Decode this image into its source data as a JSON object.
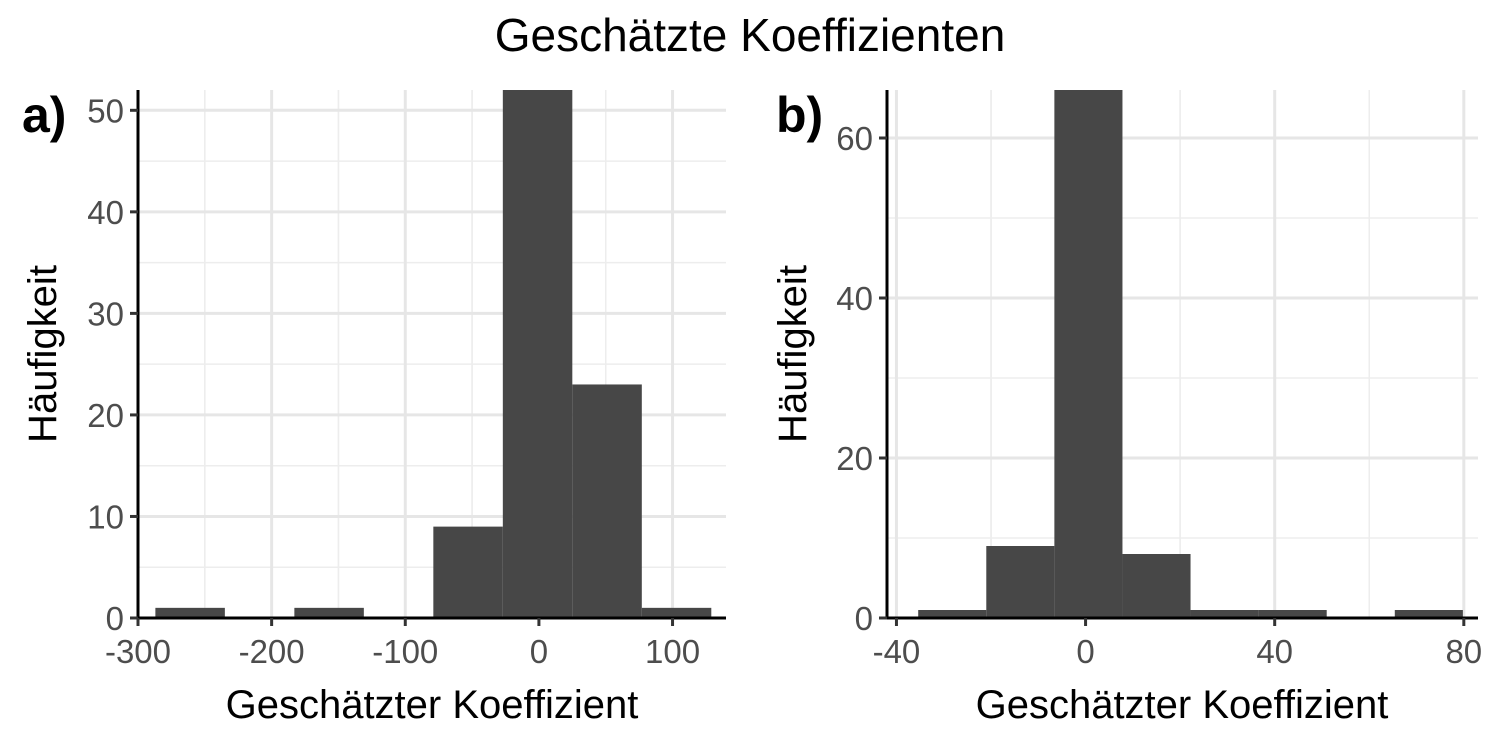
{
  "title": "Geschätzte Koeffizienten",
  "chart_data": [
    {
      "type": "bar",
      "panel": "a)",
      "xlabel": "Geschätzter Koeffizient",
      "ylabel": "Häufigkeit",
      "xlim": [
        -300,
        140
      ],
      "ylim": [
        0,
        52
      ],
      "xticks": [
        -300,
        -200,
        -100,
        0,
        100
      ],
      "xtick_labels": [
        "-300",
        "-200",
        "-100",
        "0",
        "100"
      ],
      "yticks": [
        0,
        10,
        20,
        30,
        40,
        50
      ],
      "ytick_labels": [
        "0",
        "10",
        "20",
        "30",
        "40",
        "50"
      ],
      "bin_width": 52,
      "bins": [
        {
          "x0": -287,
          "x1": -235,
          "count": 1
        },
        {
          "x0": -235,
          "x1": -183,
          "count": 0
        },
        {
          "x0": -183,
          "x1": -131,
          "count": 1
        },
        {
          "x0": -131,
          "x1": -79,
          "count": 0
        },
        {
          "x0": -79,
          "x1": -27,
          "count": 9
        },
        {
          "x0": -27,
          "x1": 25,
          "count": 52
        },
        {
          "x0": 25,
          "x1": 77,
          "count": 23
        },
        {
          "x0": 77,
          "x1": 129,
          "count": 1
        }
      ],
      "grid": true
    },
    {
      "type": "bar",
      "panel": "b)",
      "xlabel": "Geschätzter Koeffizient",
      "ylabel": "Häufigkeit",
      "xlim": [
        -42,
        83
      ],
      "ylim": [
        0,
        66
      ],
      "xticks": [
        -40,
        0,
        40,
        80
      ],
      "xtick_labels": [
        "-40",
        "0",
        "40",
        "80"
      ],
      "yticks": [
        0,
        20,
        40,
        60
      ],
      "ytick_labels": [
        "0",
        "20",
        "40",
        "60"
      ],
      "bin_width": 14.4,
      "bins": [
        {
          "x0": -35.4,
          "x1": -21.0,
          "count": 1
        },
        {
          "x0": -21.0,
          "x1": -6.6,
          "count": 9
        },
        {
          "x0": -6.6,
          "x1": 7.8,
          "count": 66
        },
        {
          "x0": 7.8,
          "x1": 22.2,
          "count": 8
        },
        {
          "x0": 22.2,
          "x1": 36.6,
          "count": 1
        },
        {
          "x0": 36.6,
          "x1": 51.0,
          "count": 1
        },
        {
          "x0": 51.0,
          "x1": 65.4,
          "count": 0
        },
        {
          "x0": 65.4,
          "x1": 79.8,
          "count": 1
        }
      ],
      "grid": true
    }
  ]
}
